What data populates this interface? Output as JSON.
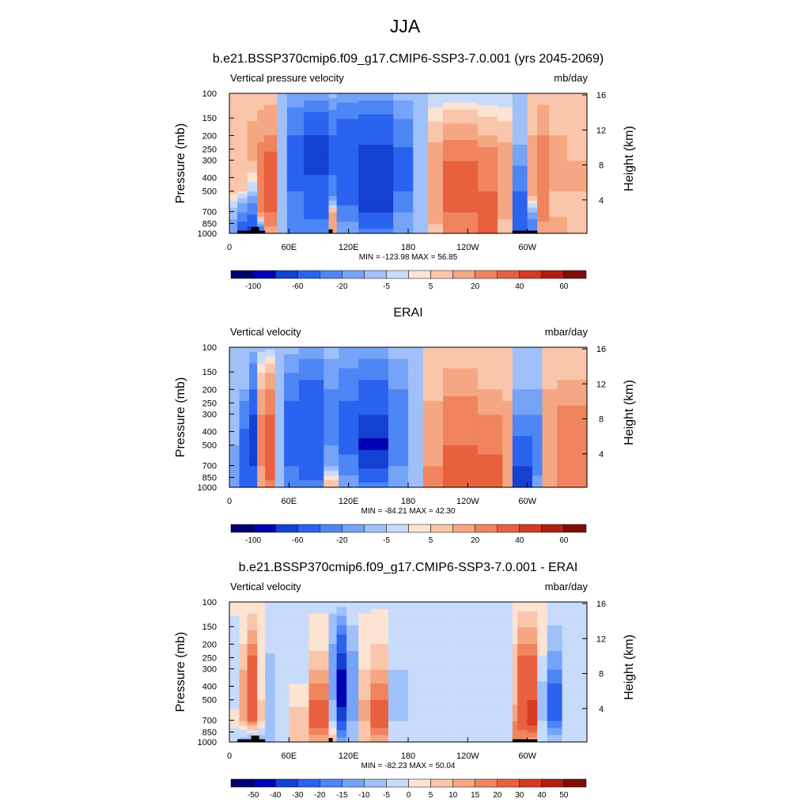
{
  "title": "JJA",
  "colors": {
    "levels_abs": [
      "#00006e",
      "#0000b4",
      "#1441d2",
      "#2b63f0",
      "#4d86f5",
      "#75a3f7",
      "#9fc0f9",
      "#c8dbfb",
      "#fde3d2",
      "#f9c6ab",
      "#f5a682",
      "#f0845f",
      "#e9603f",
      "#d73a22",
      "#b21e12",
      "#7f0d06"
    ],
    "land": "#000000"
  },
  "chart_data": [
    {
      "type": "heatmap",
      "title": "b.e21.BSSP370cmip6.f09_g17.CMIP6-SSP3-7.0.001 (yrs 2045-2069)",
      "left_label": "Vertical pressure velocity",
      "right_label": "mb/day",
      "ylabel": "Pressure (mb)",
      "y2label": "Height (km)",
      "xticks": [
        "0",
        "60E",
        "120E",
        "180",
        "120W",
        "60W"
      ],
      "yticks": [
        "100",
        "150",
        "200",
        "250",
        "300",
        "400",
        "500",
        "700",
        "850",
        "1000"
      ],
      "y2ticks": [
        "4",
        "8",
        "12",
        "16"
      ],
      "stats": "MIN = -123.98  MAX =  56.85",
      "colorbar_labels": [
        "-100",
        "-60",
        "-20",
        "-5",
        "5",
        "20",
        "40",
        "60"
      ],
      "bands": [
        {
          "lon": [
            0,
            8
          ],
          "v": [
            2,
            2,
            3,
            3,
            -3,
            -8
          ]
        },
        {
          "lon": [
            8,
            18
          ],
          "v": [
            2,
            4,
            3,
            2,
            -10,
            -30
          ]
        },
        {
          "lon": [
            18,
            28
          ],
          "v": [
            3,
            6,
            5,
            -2,
            -15,
            -50
          ]
        },
        {
          "lon": [
            28,
            35
          ],
          "v": [
            3,
            8,
            15,
            18,
            12,
            -20
          ]
        },
        {
          "lon": [
            35,
            48
          ],
          "v": [
            3,
            10,
            25,
            30,
            20,
            5
          ]
        },
        {
          "lon": [
            48,
            58
          ],
          "v": [
            -3,
            -5,
            -5,
            -3,
            -3,
            -5
          ]
        },
        {
          "lon": [
            58,
            75
          ],
          "v": [
            -5,
            -20,
            -30,
            -20,
            -15,
            -10
          ]
        },
        {
          "lon": [
            75,
            100
          ],
          "v": [
            -5,
            -40,
            -45,
            -35,
            -25,
            -10
          ]
        },
        {
          "lon": [
            100,
            108
          ],
          "v": [
            -3,
            -20,
            -25,
            -15,
            5,
            10
          ]
        },
        {
          "lon": [
            108,
            130
          ],
          "v": [
            -5,
            -30,
            -35,
            -30,
            -15,
            -5
          ]
        },
        {
          "lon": [
            130,
            165
          ],
          "v": [
            -5,
            -35,
            -50,
            -55,
            -40,
            -15
          ]
        },
        {
          "lon": [
            165,
            185
          ],
          "v": [
            -3,
            -15,
            -25,
            -20,
            -10,
            -5
          ]
        },
        {
          "lon": [
            185,
            200
          ],
          "v": [
            -2,
            -3,
            -5,
            -5,
            -3,
            -2
          ]
        },
        {
          "lon": [
            200,
            215
          ],
          "v": [
            -2,
            4,
            8,
            10,
            8,
            3
          ]
        },
        {
          "lon": [
            215,
            250
          ],
          "v": [
            -2,
            8,
            20,
            25,
            20,
            15
          ]
        },
        {
          "lon": [
            250,
            270
          ],
          "v": [
            -2,
            5,
            15,
            20,
            30,
            25
          ]
        },
        {
          "lon": [
            270,
            285
          ],
          "v": [
            -2,
            4,
            8,
            10,
            6,
            3
          ]
        },
        {
          "lon": [
            285,
            300
          ],
          "v": [
            -2,
            -3,
            -8,
            -20,
            -35,
            -40
          ]
        },
        {
          "lon": [
            300,
            310
          ],
          "v": [
            3,
            5,
            10,
            8,
            -5,
            -20
          ]
        },
        {
          "lon": [
            310,
            322
          ],
          "v": [
            3,
            10,
            18,
            20,
            15,
            5
          ]
        },
        {
          "lon": [
            322,
            340
          ],
          "v": [
            2,
            5,
            8,
            5,
            3,
            10
          ]
        },
        {
          "lon": [
            340,
            360
          ],
          "v": [
            2,
            3,
            5,
            5,
            3,
            5
          ]
        }
      ],
      "land": [
        [
          8,
          22,
          0.17
        ],
        [
          22,
          30,
          0.4
        ],
        [
          30,
          36,
          0.17
        ],
        [
          100,
          104,
          0.25
        ],
        [
          285,
          310,
          0.17
        ]
      ]
    },
    {
      "type": "heatmap",
      "title": "ERAI",
      "left_label": "Vertical velocity",
      "right_label": "mbar/day",
      "ylabel": "Pressure (mb)",
      "y2label": "Height (km)",
      "xticks": [
        "0",
        "60E",
        "120E",
        "180",
        "120W",
        "60W"
      ],
      "yticks": [
        "100",
        "150",
        "200",
        "250",
        "300",
        "400",
        "500",
        "700",
        "850",
        "1000"
      ],
      "y2ticks": [
        "4",
        "8",
        "12",
        "16"
      ],
      "stats": "MIN = -84.21  MAX =  42.30",
      "colorbar_labels": [
        "-100",
        "-60",
        "-20",
        "-5",
        "5",
        "20",
        "40",
        "60"
      ],
      "bands": [
        {
          "lon": [
            0,
            10
          ],
          "v": [
            -3,
            -5,
            -5,
            -5,
            -10,
            -5
          ]
        },
        {
          "lon": [
            10,
            20
          ],
          "v": [
            -3,
            -5,
            -15,
            -25,
            -35,
            -20
          ]
        },
        {
          "lon": [
            20,
            28
          ],
          "v": [
            -3,
            -20,
            -40,
            -45,
            -40,
            -20
          ]
        },
        {
          "lon": [
            28,
            36
          ],
          "v": [
            -3,
            5,
            10,
            15,
            10,
            8
          ]
        },
        {
          "lon": [
            36,
            46
          ],
          "v": [
            -3,
            10,
            20,
            25,
            30,
            15
          ]
        },
        {
          "lon": [
            46,
            55
          ],
          "v": [
            -3,
            -3,
            -3,
            -5,
            -5,
            -3
          ]
        },
        {
          "lon": [
            55,
            70
          ],
          "v": [
            -3,
            -15,
            -25,
            -25,
            -20,
            -10
          ]
        },
        {
          "lon": [
            70,
            95
          ],
          "v": [
            -5,
            -25,
            -35,
            -40,
            -30,
            -15
          ]
        },
        {
          "lon": [
            95,
            110
          ],
          "v": [
            -3,
            -10,
            -15,
            -10,
            -5,
            5
          ]
        },
        {
          "lon": [
            110,
            130
          ],
          "v": [
            -5,
            -15,
            -25,
            -25,
            -15,
            -5
          ]
        },
        {
          "lon": [
            130,
            160
          ],
          "v": [
            -5,
            -25,
            -40,
            -65,
            -45,
            -15
          ]
        },
        {
          "lon": [
            160,
            180
          ],
          "v": [
            -3,
            -10,
            -15,
            -15,
            -10,
            -5
          ]
        },
        {
          "lon": [
            180,
            195
          ],
          "v": [
            -3,
            -3,
            -3,
            -5,
            -3,
            -2
          ]
        },
        {
          "lon": [
            195,
            215
          ],
          "v": [
            2,
            4,
            6,
            8,
            10,
            10
          ]
        },
        {
          "lon": [
            215,
            250
          ],
          "v": [
            2,
            8,
            15,
            20,
            20,
            25
          ]
        },
        {
          "lon": [
            250,
            275
          ],
          "v": [
            2,
            5,
            10,
            15,
            25,
            25
          ]
        },
        {
          "lon": [
            275,
            285
          ],
          "v": [
            2,
            4,
            6,
            8,
            10,
            8
          ]
        },
        {
          "lon": [
            285,
            305
          ],
          "v": [
            -3,
            -5,
            -10,
            -25,
            -40,
            -50
          ]
        },
        {
          "lon": [
            305,
            315
          ],
          "v": [
            -3,
            -5,
            -10,
            -20,
            -15,
            -5
          ]
        },
        {
          "lon": [
            315,
            330
          ],
          "v": [
            2,
            5,
            8,
            10,
            8,
            5
          ]
        },
        {
          "lon": [
            330,
            360
          ],
          "v": [
            2,
            6,
            12,
            15,
            15,
            10
          ]
        }
      ],
      "land": []
    },
    {
      "type": "heatmap",
      "title": "b.e21.BSSP370cmip6.f09_g17.CMIP6-SSP3-7.0.001 - ERAI",
      "left_label": "Vertical velocity",
      "right_label": "mbar/day",
      "ylabel": "Pressure (mb)",
      "y2label": "Height (km)",
      "xticks": [
        "0",
        "60E",
        "120E",
        "180",
        "120W",
        "60W"
      ],
      "yticks": [
        "100",
        "150",
        "200",
        "250",
        "300",
        "400",
        "500",
        "700",
        "850",
        "1000"
      ],
      "y2ticks": [
        "4",
        "8",
        "12",
        "16"
      ],
      "stats": "MIN = -82.23  MAX =  50.04",
      "colorbar_labels": [
        "-50",
        "-40",
        "-30",
        "-20",
        "-15",
        "-10",
        "-5",
        "0",
        "5",
        "10",
        "15",
        "20",
        "30",
        "40",
        "50"
      ],
      "bands": [
        {
          "lon": [
            0,
            10
          ],
          "v": [
            1,
            -2,
            -3,
            -3,
            3,
            -5
          ]
        },
        {
          "lon": [
            10,
            18
          ],
          "v": [
            1,
            5,
            10,
            15,
            10,
            -10
          ]
        },
        {
          "lon": [
            18,
            28
          ],
          "v": [
            1,
            15,
            25,
            30,
            20,
            -15
          ]
        },
        {
          "lon": [
            28,
            36
          ],
          "v": [
            1,
            5,
            3,
            5,
            5,
            -10
          ]
        },
        {
          "lon": [
            36,
            46
          ],
          "v": [
            -1,
            -3,
            -8,
            -10,
            -8,
            -5
          ]
        },
        {
          "lon": [
            46,
            60
          ],
          "v": [
            -1,
            -3,
            -3,
            -5,
            -5,
            -3
          ]
        },
        {
          "lon": [
            60,
            80
          ],
          "v": [
            -1,
            -5,
            -3,
            3,
            8,
            8
          ]
        },
        {
          "lon": [
            80,
            100
          ],
          "v": [
            -1,
            3,
            10,
            20,
            25,
            10
          ]
        },
        {
          "lon": [
            100,
            108
          ],
          "v": [
            -3,
            -10,
            -15,
            -10,
            -5,
            10
          ]
        },
        {
          "lon": [
            108,
            118
          ],
          "v": [
            -3,
            -25,
            -40,
            -45,
            -30,
            -10
          ]
        },
        {
          "lon": [
            118,
            130
          ],
          "v": [
            -1,
            -8,
            -15,
            -15,
            -10,
            -5
          ]
        },
        {
          "lon": [
            130,
            142
          ],
          "v": [
            -1,
            3,
            5,
            10,
            10,
            5
          ]
        },
        {
          "lon": [
            142,
            160
          ],
          "v": [
            -1,
            5,
            10,
            20,
            25,
            10
          ]
        },
        {
          "lon": [
            160,
            180
          ],
          "v": [
            -1,
            -3,
            -5,
            -8,
            -5,
            -3
          ]
        },
        {
          "lon": [
            180,
            220
          ],
          "v": [
            -1,
            -3,
            -3,
            -3,
            -2,
            -2
          ]
        },
        {
          "lon": [
            220,
            260
          ],
          "v": [
            -1,
            -2,
            -3,
            -5,
            -3,
            -2
          ]
        },
        {
          "lon": [
            260,
            285
          ],
          "v": [
            -1,
            -3,
            -3,
            -5,
            -3,
            -3
          ]
        },
        {
          "lon": [
            285,
            290
          ],
          "v": [
            2,
            5,
            5,
            8,
            15,
            20
          ]
        },
        {
          "lon": [
            290,
            300
          ],
          "v": [
            2,
            15,
            25,
            30,
            25,
            15
          ]
        },
        {
          "lon": [
            300,
            310
          ],
          "v": [
            2,
            15,
            25,
            30,
            35,
            10
          ]
        },
        {
          "lon": [
            310,
            320
          ],
          "v": [
            2,
            3,
            -3,
            -8,
            -5,
            -3
          ]
        },
        {
          "lon": [
            320,
            335
          ],
          "v": [
            -1,
            -8,
            -15,
            -25,
            -20,
            -5
          ]
        },
        {
          "lon": [
            335,
            360
          ],
          "v": [
            -1,
            -3,
            -5,
            -5,
            -3,
            -2
          ]
        }
      ],
      "land": [
        [
          8,
          22,
          0.17
        ],
        [
          22,
          30,
          0.4
        ],
        [
          30,
          36,
          0.17
        ],
        [
          100,
          104,
          0.25
        ],
        [
          285,
          310,
          0.17
        ]
      ]
    }
  ]
}
